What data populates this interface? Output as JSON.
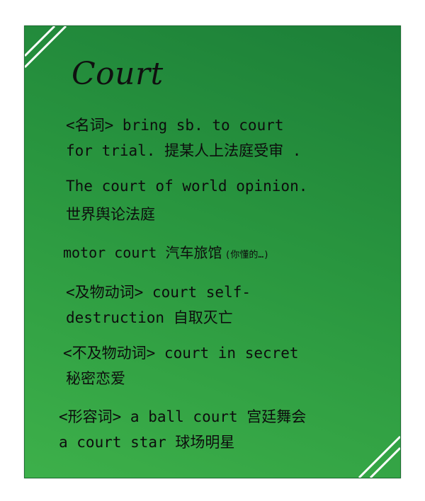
{
  "title": "Court",
  "lines": [
    "<名词> bring sb. to court",
    "for trial.  提某人上法庭受审 .",
    "The court of world opinion.",
    "世界舆论法庭",
    "motor court 汽车旅馆",
    "(你懂的…)",
    "<及物动词> court self-",
    "destruction 自取灭亡",
    "<不及物动词> court in secret",
    "秘密恋爱",
    "<形容词> a ball court 宫廷舞会",
    "a court star 球场明星"
  ],
  "colors": {
    "card_dark": "#1c7f38",
    "card_light": "#3db04a",
    "text": "#0d0d0d",
    "stripe": "#ffffff"
  }
}
